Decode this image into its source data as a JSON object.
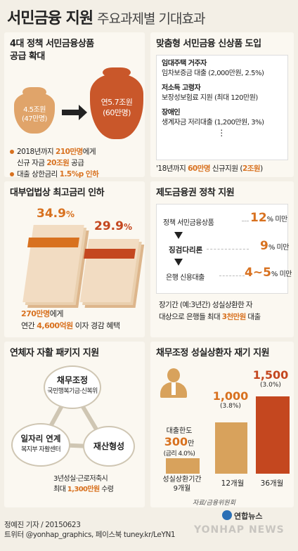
{
  "title": {
    "main": "서민금융 지원",
    "sub": "주요과제별 기대효과"
  },
  "p1": {
    "h1": "4대 정책 서민금융상품",
    "h2": "공급 확대",
    "bag_small_1": "4.5조원",
    "bag_small_2": "(47만명)",
    "bag_big_1": "연5.7조원",
    "bag_big_2": "(60만명)",
    "b1_a": "2018년까지 ",
    "b1_b": "210만명",
    "b1_c": "에게",
    "b1_d": "신규 자금 ",
    "b1_e": "20조원",
    "b1_f": " 공급",
    "b2_a": "대출 상한금리 ",
    "b2_b": "1.5%p 인하"
  },
  "p2": {
    "h": "맞춤형 서민금융 신상품 도입",
    "i1_t": "임대주택 거주자",
    "i1_d": "임차보증금 대출 (2,000만원, 2.5%)",
    "i2_t": "저소득 고령자",
    "i2_d": "보장성보험료 지원 (최대 120만원)",
    "i3_t": "장애인",
    "i3_d": "생계자금 저리대출 (1,200만원, 3%)",
    "dots": "⋮",
    "f_a": "'18년까지 ",
    "f_b": "60만명",
    "f_c": " 신규지원 (",
    "f_d": "2조원",
    "f_e": ")"
  },
  "p3": {
    "h": "대부업법상 최고금리 인하",
    "before": "34.9",
    "after": "29.9",
    "pct": "%",
    "l1_a": "270만명",
    "l1_b": "에게",
    "l2_a": "연간 ",
    "l2_b": "4,600억원",
    "l2_c": " 이자 경감 혜택"
  },
  "p4": {
    "h": "제도금융권 정착 지원",
    "r1_l": "정책 서민금융상품",
    "r1_v": "12",
    "r2_l": "징검다리론",
    "r2_v": "9",
    "r3_l": "은행 신용대출",
    "r3_v": "4~5",
    "unit": "% 미만",
    "f1": "장기간 (예:3년간) 성실상환한 자",
    "f2_a": "대상으로 은행들 최대 ",
    "f2_b": "3천만원",
    "f2_c": " 대출"
  },
  "p5": {
    "h": "연체자 자활 패키지 지원",
    "c1_t": "채무조정",
    "c1_d": "국민행복기금·신복위",
    "c2_t": "일자리 연계",
    "c2_d": "복지부 자활센터",
    "c3_t": "재산형성",
    "f1": "3년성실·근로저축시",
    "f2_a": "최대 ",
    "f2_b": "1,300만원",
    "f2_c": " 수령"
  },
  "p6": {
    "h": "채무조정 성실상환자 재기 지원",
    "limit_label": "대출한도",
    "v1": "300",
    "v1_unit": "만",
    "v1_rate": "(금리 4.0%)",
    "v2": "1,000",
    "v2_rate": "(3.8%)",
    "v3": "1,500",
    "v3_rate": "(3.0%)",
    "x1_a": "성실상환기간",
    "x1_b": "9개월",
    "x2": "12개월",
    "x3": "36개월",
    "source": "자료/금융위원회"
  },
  "chart_data": {
    "type": "bar",
    "categories": [
      "9개월",
      "12개월",
      "36개월"
    ],
    "values": [
      300,
      1000,
      1500
    ],
    "rates": [
      "4.0%",
      "3.8%",
      "3.0%"
    ],
    "ylim": [
      0,
      1500
    ]
  },
  "footer": {
    "credit": "정예진 기자 / 20150623",
    "sns": "트위터 @yonhap_graphics, 페이스북 tuney.kr/LeYN1",
    "logo_text": "연합뉴스",
    "watermark": "YONHAP NEWS"
  },
  "colors": {
    "orange": "#d8711f",
    "red": "#c4471f",
    "bag_light": "#e0a46a",
    "bag_dark": "#c9572a"
  }
}
